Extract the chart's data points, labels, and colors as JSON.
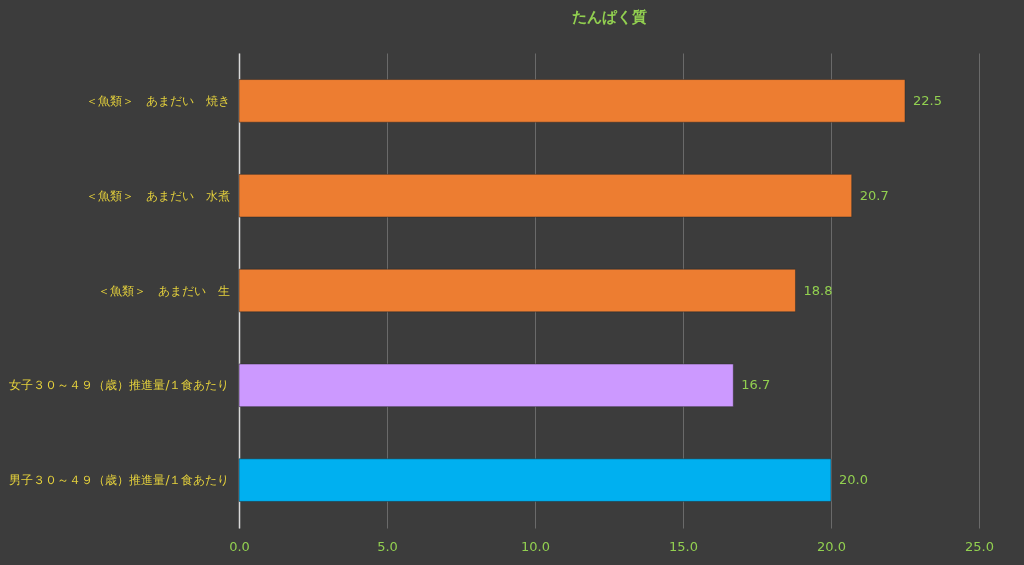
{
  "chart_data": {
    "type": "bar",
    "orientation": "horizontal",
    "title": "たんぱく質",
    "categories": [
      "＜魚類＞　あまだい　焼き",
      "＜魚類＞　あまだい　水煮",
      "＜魚類＞　あまだい　生",
      "女子３０～４９（歳）推進量/１食あたり",
      "男子３０～４９（歳）推進量/１食あたり"
    ],
    "values": [
      22.5,
      20.7,
      18.8,
      16.7,
      20.0
    ],
    "value_labels": [
      "22.5",
      "20.7",
      "18.8",
      "16.7",
      "20.0"
    ],
    "colors": [
      "#ed7d31",
      "#ed7d31",
      "#ed7d31",
      "#cc99ff",
      "#00b0f0"
    ],
    "xlim": [
      0,
      25
    ],
    "xticks": [
      {
        "value": 0,
        "label": "0.0"
      },
      {
        "value": 5,
        "label": "5.0"
      },
      {
        "value": 10,
        "label": "10.0"
      },
      {
        "value": 15,
        "label": "15.0"
      },
      {
        "value": 20,
        "label": "20.0"
      },
      {
        "value": 25,
        "label": "25.0"
      }
    ],
    "grid": "x"
  }
}
